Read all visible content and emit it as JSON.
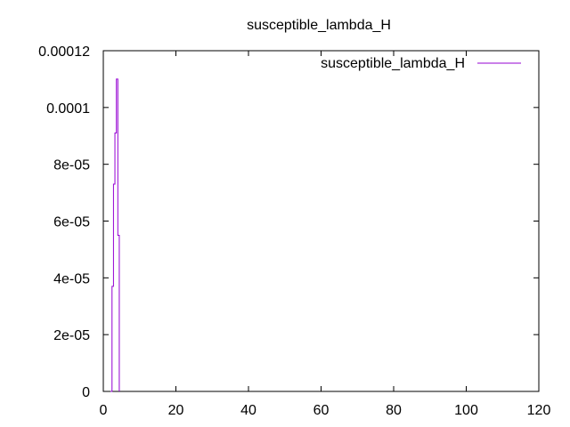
{
  "chart_data": {
    "type": "line",
    "title": "susceptible_lambda_H",
    "xlabel": "",
    "ylabel": "",
    "xlim": [
      0,
      120
    ],
    "ylim": [
      0,
      0.00012
    ],
    "x_ticks": [
      0,
      20,
      40,
      60,
      80,
      100,
      120
    ],
    "y_ticks": [
      0,
      2e-05,
      4e-05,
      6e-05,
      8e-05,
      0.0001,
      0.00012
    ],
    "x_tick_labels": [
      "0",
      "20",
      "40",
      "60",
      "80",
      "100",
      "120"
    ],
    "y_tick_labels": [
      "0",
      "2e-05",
      "4e-05",
      "6e-05",
      "8e-05",
      "0.0001",
      "0.00012"
    ],
    "grid": false,
    "legend_position": "top-right",
    "line_style": "steps",
    "series": [
      {
        "name": "susceptible_lambda_H",
        "color": "#9400d3",
        "x": [
          2.0,
          2.4,
          2.8,
          3.2,
          3.6,
          4.0
        ],
        "y": [
          0.0,
          3.7e-05,
          7.3e-05,
          9.1e-05,
          0.00011,
          5.5e-05
        ]
      }
    ]
  }
}
